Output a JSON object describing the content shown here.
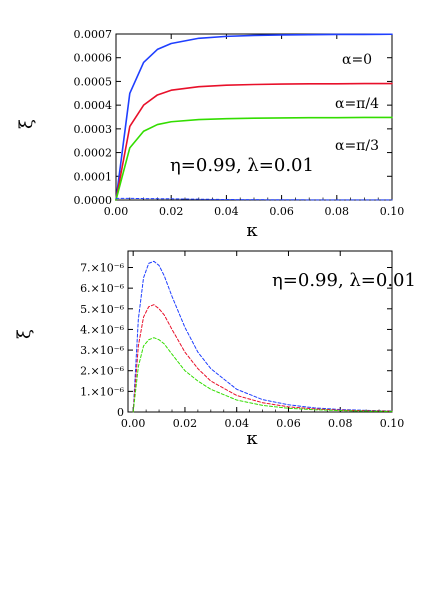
{
  "chart_data": [
    {
      "type": "line",
      "xlabel": "κ",
      "ylabel": "ξ",
      "xlim": [
        0,
        0.1
      ],
      "ylim": [
        0,
        0.0007
      ],
      "x_ticks": [
        "0.00",
        "0.02",
        "0.04",
        "0.06",
        "0.08",
        "0.10"
      ],
      "y_ticks": [
        "0.0000",
        "0.0001",
        "0.0002",
        "0.0003",
        "0.0004",
        "0.0005",
        "0.0006",
        "0.0007"
      ],
      "annotation": "η=0.99, λ=0.01",
      "series": [
        {
          "name": "α=0",
          "color": "#1f3fff",
          "style": "solid",
          "x": [
            0,
            0.005,
            0.01,
            0.015,
            0.02,
            0.03,
            0.04,
            0.05,
            0.06,
            0.07,
            0.08,
            0.09,
            0.1
          ],
          "y": [
            0,
            0.00045,
            0.00058,
            0.000635,
            0.00066,
            0.000682,
            0.00069,
            0.000694,
            0.000696,
            0.000697,
            0.000698,
            0.000698,
            0.000699
          ]
        },
        {
          "name": "α=π/4",
          "color": "#e8102a",
          "style": "solid",
          "x": [
            0,
            0.005,
            0.01,
            0.015,
            0.02,
            0.03,
            0.04,
            0.05,
            0.06,
            0.07,
            0.08,
            0.09,
            0.1
          ],
          "y": [
            0,
            0.00031,
            0.0004,
            0.000443,
            0.000463,
            0.000478,
            0.000484,
            0.000487,
            0.000489,
            0.00049,
            0.00049,
            0.000491,
            0.000491
          ]
        },
        {
          "name": "α=π/3",
          "color": "#33dd00",
          "style": "solid",
          "x": [
            0,
            0.005,
            0.01,
            0.015,
            0.02,
            0.03,
            0.04,
            0.05,
            0.06,
            0.07,
            0.08,
            0.09,
            0.1
          ],
          "y": [
            0,
            0.00022,
            0.00029,
            0.000318,
            0.00033,
            0.000339,
            0.000343,
            0.000345,
            0.000346,
            0.000347,
            0.000347,
            0.000348,
            0.000348
          ]
        },
        {
          "name": "",
          "color": "#1f3fff",
          "style": "dashed",
          "x": [
            0,
            0.005,
            0.01,
            0.02,
            0.04,
            0.06,
            0.08,
            0.1
          ],
          "y": [
            7e-06,
            7e-06,
            6e-06,
            5e-06,
            2e-06,
            1e-06,
            5e-07,
            3e-07
          ]
        }
      ]
    },
    {
      "type": "line",
      "xlabel": "κ",
      "ylabel": "ξ",
      "xlim": [
        -0.002,
        0.1
      ],
      "ylim": [
        0,
        7.8e-06
      ],
      "x_ticks": [
        "0.00",
        "0.02",
        "0.04",
        "0.06",
        "0.08",
        "0.10"
      ],
      "y_ticks": [
        "0",
        "1.×10⁻⁶",
        "2.×10⁻⁶",
        "3.×10⁻⁶",
        "4.×10⁻⁶",
        "5.×10⁻⁶",
        "6.×10⁻⁶",
        "7.×10⁻⁶"
      ],
      "annotation": "η=0.99, λ=0.01",
      "series": [
        {
          "name": "",
          "color": "#1f3fff",
          "style": "dashed",
          "x": [
            0,
            0.002,
            0.004,
            0.006,
            0.008,
            0.01,
            0.012,
            0.015,
            0.02,
            0.025,
            0.03,
            0.04,
            0.05,
            0.06,
            0.07,
            0.08,
            0.09,
            0.1
          ],
          "y": [
            0,
            4.5e-06,
            6.5e-06,
            7.2e-06,
            7.3e-06,
            7.1e-06,
            6.6e-06,
            5.6e-06,
            4.1e-06,
            2.9e-06,
            2.1e-06,
            1.1e-06,
            6e-07,
            3.5e-07,
            2e-07,
            1.2e-07,
            8e-08,
            5e-08
          ]
        },
        {
          "name": "",
          "color": "#e8102a",
          "style": "dashed",
          "x": [
            0,
            0.002,
            0.004,
            0.006,
            0.008,
            0.01,
            0.012,
            0.015,
            0.02,
            0.025,
            0.03,
            0.04,
            0.05,
            0.06,
            0.07,
            0.08,
            0.09,
            0.1
          ],
          "y": [
            0,
            3.2e-06,
            4.6e-06,
            5.1e-06,
            5.2e-06,
            5e-06,
            4.7e-06,
            4e-06,
            2.9e-06,
            2.1e-06,
            1.5e-06,
            8e-07,
            4.5e-07,
            2.5e-07,
            1.5e-07,
            9e-08,
            6e-08,
            4e-08
          ]
        },
        {
          "name": "",
          "color": "#33dd00",
          "style": "dashed",
          "x": [
            0,
            0.002,
            0.004,
            0.006,
            0.008,
            0.01,
            0.012,
            0.015,
            0.02,
            0.025,
            0.03,
            0.04,
            0.05,
            0.06,
            0.07,
            0.08,
            0.09,
            0.1
          ],
          "y": [
            0,
            2.2e-06,
            3.2e-06,
            3.5e-06,
            3.6e-06,
            3.5e-06,
            3.3e-06,
            2.8e-06,
            2e-06,
            1.5e-06,
            1.1e-06,
            5.8e-07,
            3.2e-07,
            1.8e-07,
            1.1e-07,
            7e-08,
            4e-08,
            3e-08
          ]
        }
      ]
    }
  ]
}
